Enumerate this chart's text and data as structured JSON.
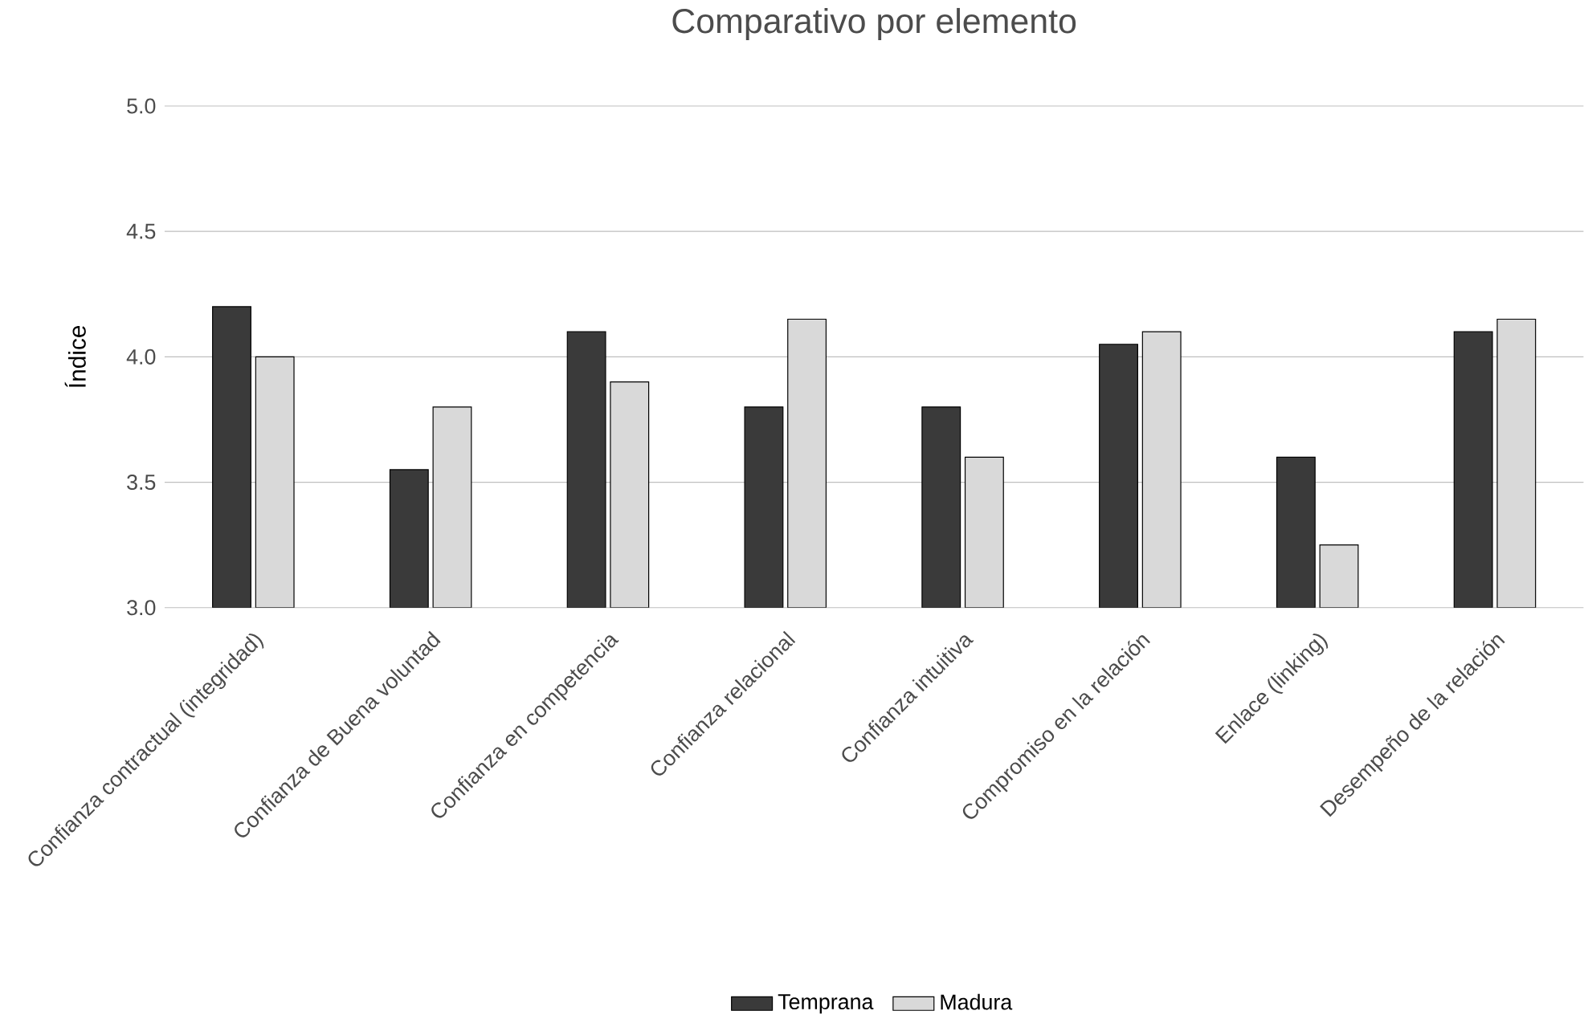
{
  "chart_data": {
    "type": "bar",
    "title": "Comparativo por elemento",
    "ylabel": "Índice",
    "categories": [
      "Confianza contractual (integridad)",
      "Confianza de Buena voluntad",
      "Confianza en competencia",
      "Confianza relacional",
      "Confianza intuitiva",
      "Compromiso en la relación",
      "Enlace (linking)",
      "Desempeño de la relación"
    ],
    "series": [
      {
        "name": "Temprana",
        "color": "#3a3a3a",
        "values": [
          4.2,
          3.55,
          4.1,
          3.8,
          3.8,
          4.05,
          3.6,
          4.1
        ]
      },
      {
        "name": "Madura",
        "color": "#d9d9d9",
        "values": [
          4.0,
          3.8,
          3.9,
          4.15,
          3.6,
          4.1,
          3.25,
          4.15
        ]
      }
    ],
    "ylim": [
      3.0,
      5.0
    ],
    "yticks": [
      {
        "value": 3.0,
        "label": "3.0"
      },
      {
        "value": 3.5,
        "label": "3.5"
      },
      {
        "value": 4.0,
        "label": "4.0"
      },
      {
        "value": 4.5,
        "label": "4.5"
      },
      {
        "value": 5.0,
        "label": "5.0"
      }
    ],
    "grid": "y",
    "legend": "bottom"
  }
}
